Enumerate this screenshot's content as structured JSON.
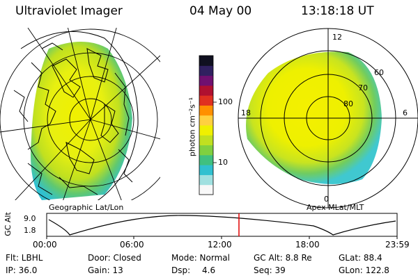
{
  "header": {
    "instrument": "Ultraviolet Imager",
    "date": "04 May 00",
    "time": "13:18:18 UT"
  },
  "colorbar": {
    "unit_label": "photon cm⁻²s⁻¹",
    "ticks": [
      "100",
      "10"
    ],
    "colors": [
      "#f8f8f8",
      "#a0e0e0",
      "#30c0d0",
      "#40c080",
      "#80d040",
      "#c0e020",
      "#f0f000",
      "#ffd040",
      "#ff9000",
      "#e03020",
      "#b01030",
      "#701070",
      "#302060",
      "#101020"
    ]
  },
  "left_panel": {
    "label": "Geographic Lat/Lon"
  },
  "right_panel": {
    "label": "Apex MLat/MLT",
    "mlt_labels": [
      "12",
      "18",
      "6",
      "0"
    ],
    "mlat_labels": [
      "60",
      "70",
      "80"
    ]
  },
  "altitude_plot": {
    "ylabel": "GC Alt",
    "yticks": [
      "9.0",
      "1.8"
    ],
    "xticks": [
      "00:00",
      "06:00",
      "12:00",
      "18:00",
      "23:59"
    ],
    "marker_color": "#e00000"
  },
  "info": {
    "flt": "Flt: LBHL",
    "ip": "IP: 36.0",
    "door": "Door: Closed",
    "gain": "Gain: 13",
    "mode": "Mode: Normal",
    "dsp_label": "Dsp:",
    "dsp_value": "4.6",
    "gcalt": "GC Alt: 8.8 Re",
    "seq": "Seq: 39",
    "glat": "GLat: 88.4",
    "glon": "GLon: 122.8"
  }
}
